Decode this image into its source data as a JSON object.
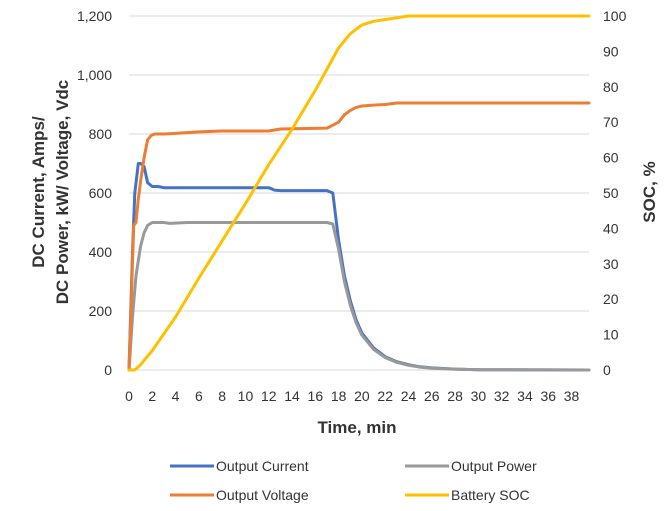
{
  "chart_data": {
    "type": "line",
    "xlabel": "Time, min",
    "ylabel_left_line1": "DC Current, Amps/",
    "ylabel_left_line2": "DC Power, kW/ Voltage, Vdc",
    "ylabel_right": "SOC, %",
    "xlim": [
      0,
      39.5
    ],
    "ylim_left": [
      0,
      1200
    ],
    "ylim_right": [
      0,
      100
    ],
    "x_ticks": [
      0,
      2,
      4,
      6,
      8,
      10,
      12,
      14,
      16,
      18,
      20,
      22,
      24,
      26,
      28,
      30,
      32,
      34,
      36,
      38
    ],
    "y_ticks_left": [
      "0",
      "200",
      "400",
      "600",
      "800",
      "1,000",
      "1,200"
    ],
    "y_ticks_left_values": [
      0,
      200,
      400,
      600,
      800,
      1000,
      1200
    ],
    "y_ticks_right": [
      "0",
      "10",
      "20",
      "30",
      "40",
      "50",
      "60",
      "70",
      "80",
      "90",
      "100"
    ],
    "y_ticks_right_values": [
      0,
      10,
      20,
      30,
      40,
      50,
      60,
      70,
      80,
      90,
      100
    ],
    "grid": "horizontal",
    "legend_position": "bottom",
    "series": [
      {
        "name": "Output Current",
        "axis": "left",
        "color": "#4472c4",
        "x": [
          0,
          0.3,
          0.5,
          0.8,
          1.0,
          1.3,
          1.6,
          2.0,
          2.5,
          3.0,
          6.0,
          10.0,
          12.0,
          12.5,
          13.0,
          15.0,
          17.0,
          17.5,
          18.0,
          18.5,
          19.0,
          19.5,
          20.0,
          21.0,
          22.0,
          23.0,
          24.0,
          25.0,
          26.0,
          28.0,
          30.0,
          39.5
        ],
        "y": [
          0,
          400,
          600,
          700,
          700,
          690,
          635,
          622,
          622,
          618,
          618,
          618,
          618,
          610,
          608,
          608,
          608,
          600,
          440,
          320,
          235,
          170,
          125,
          75,
          45,
          28,
          18,
          11,
          7,
          3,
          1,
          0
        ]
      },
      {
        "name": "Output Power",
        "axis": "left",
        "color": "#999999",
        "x": [
          0,
          0.3,
          0.6,
          1.0,
          1.3,
          1.6,
          2.0,
          2.5,
          3.0,
          3.5,
          5.0,
          10.0,
          12.0,
          12.5,
          15.0,
          17.0,
          17.5,
          18.0,
          18.5,
          19.0,
          19.5,
          20.0,
          21.0,
          22.0,
          23.0,
          24.0,
          25.0,
          26.0,
          28.0,
          30.0,
          39.5
        ],
        "y": [
          0,
          180,
          320,
          420,
          465,
          490,
          500,
          500,
          500,
          497,
          500,
          500,
          500,
          500,
          500,
          500,
          495,
          410,
          300,
          220,
          160,
          118,
          70,
          42,
          26,
          16,
          10,
          6,
          3,
          1,
          0
        ]
      },
      {
        "name": "Output Voltage",
        "axis": "left",
        "color": "#ed7d31",
        "x": [
          0,
          0.4,
          0.6,
          0.8,
          1.0,
          1.3,
          1.6,
          1.9,
          2.2,
          3.0,
          4.0,
          6.0,
          8.0,
          12.0,
          13.0,
          17.0,
          17.5,
          18.0,
          18.5,
          19.0,
          19.5,
          20.0,
          21.0,
          22.0,
          23.0,
          39.5
        ],
        "y": [
          0,
          490,
          500,
          580,
          640,
          720,
          780,
          795,
          800,
          800,
          802,
          807,
          810,
          810,
          817,
          820,
          830,
          840,
          865,
          880,
          890,
          895,
          898,
          900,
          905,
          905
        ]
      },
      {
        "name": "Battery SOC",
        "axis": "right",
        "color": "#ffc000",
        "x": [
          0,
          0.5,
          1.0,
          2.0,
          4.0,
          6.0,
          8.0,
          10.0,
          12.0,
          14.0,
          16.0,
          17.0,
          18.0,
          19.0,
          20.0,
          21.0,
          22.0,
          23.0,
          24.0,
          39.5
        ],
        "y": [
          0,
          0,
          1.5,
          5.5,
          15,
          26,
          36.5,
          47,
          58,
          68,
          79,
          85,
          91,
          95,
          97.5,
          98.5,
          99,
          99.5,
          100,
          100
        ]
      }
    ]
  },
  "legend": {
    "current": "Output Current",
    "power": "Output Power",
    "voltage": "Output Voltage",
    "soc": "Battery SOC"
  }
}
